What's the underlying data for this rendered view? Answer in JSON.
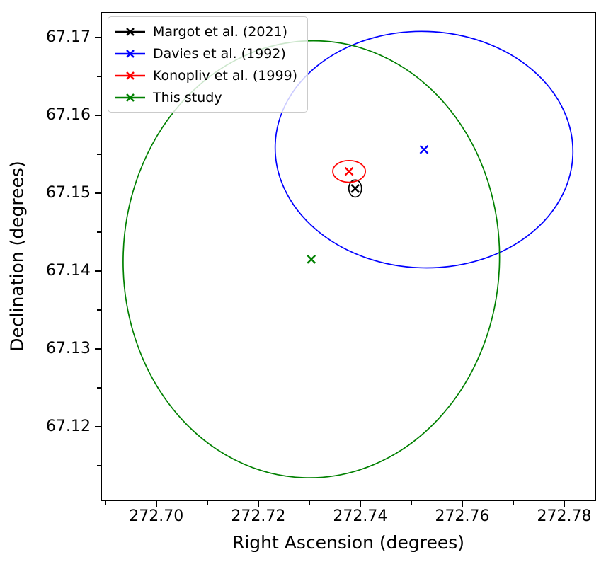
{
  "figure": {
    "background": "#ffffff",
    "spine_color": "#000000"
  },
  "chart_data": {
    "type": "scatter",
    "title": "",
    "xlabel": "Right Ascension (degrees)",
    "ylabel": "Declination (degrees)",
    "xlim": [
      272.6892,
      272.7861
    ],
    "ylim": [
      67.1105,
      67.1732
    ],
    "grid": false,
    "legend_position": "upper left",
    "x_major_ticks": [
      272.7,
      272.72,
      272.74,
      272.76,
      272.78
    ],
    "x_major_labels": [
      "272.70",
      "272.72",
      "272.74",
      "272.76",
      "272.78"
    ],
    "x_minor_ticks": [
      272.69,
      272.71,
      272.73,
      272.75,
      272.77
    ],
    "y_major_ticks": [
      67.17,
      67.16,
      67.15,
      67.14,
      67.13,
      67.12
    ],
    "y_major_labels": [
      "67.17",
      "67.16",
      "67.15",
      "67.14",
      "67.13",
      "67.12"
    ],
    "y_minor_ticks": [
      67.165,
      67.155,
      67.145,
      67.135,
      67.125,
      67.115
    ],
    "series": [
      {
        "name": "Margot et al. (2021)",
        "color": "#000000",
        "marker": "x",
        "ra": 272.739,
        "dec": 67.1506,
        "error_ellipse": {
          "semi_ra": 0.00125,
          "semi_dec": 0.0011,
          "rotation_deg": 0
        }
      },
      {
        "name": "Davies et al. (1992)",
        "color": "#0000ff",
        "marker": "x",
        "ra": 272.7525,
        "dec": 67.1556,
        "error_ellipse": {
          "semi_ra": 0.0292,
          "semi_dec": 0.0152,
          "rotation_deg": 2
        }
      },
      {
        "name": "Konopliv et al. (1999)",
        "color": "#ff0000",
        "marker": "x",
        "ra": 272.7378,
        "dec": 67.1528,
        "error_ellipse": {
          "semi_ra": 0.0032,
          "semi_dec": 0.0014,
          "rotation_deg": 0
        }
      },
      {
        "name": "This study",
        "color": "#008000",
        "marker": "x",
        "ra": 272.7304,
        "dec": 67.1415,
        "error_ellipse": {
          "semi_ra": 0.0369,
          "semi_dec": 0.0281,
          "rotation_deg": 2
        }
      }
    ]
  }
}
